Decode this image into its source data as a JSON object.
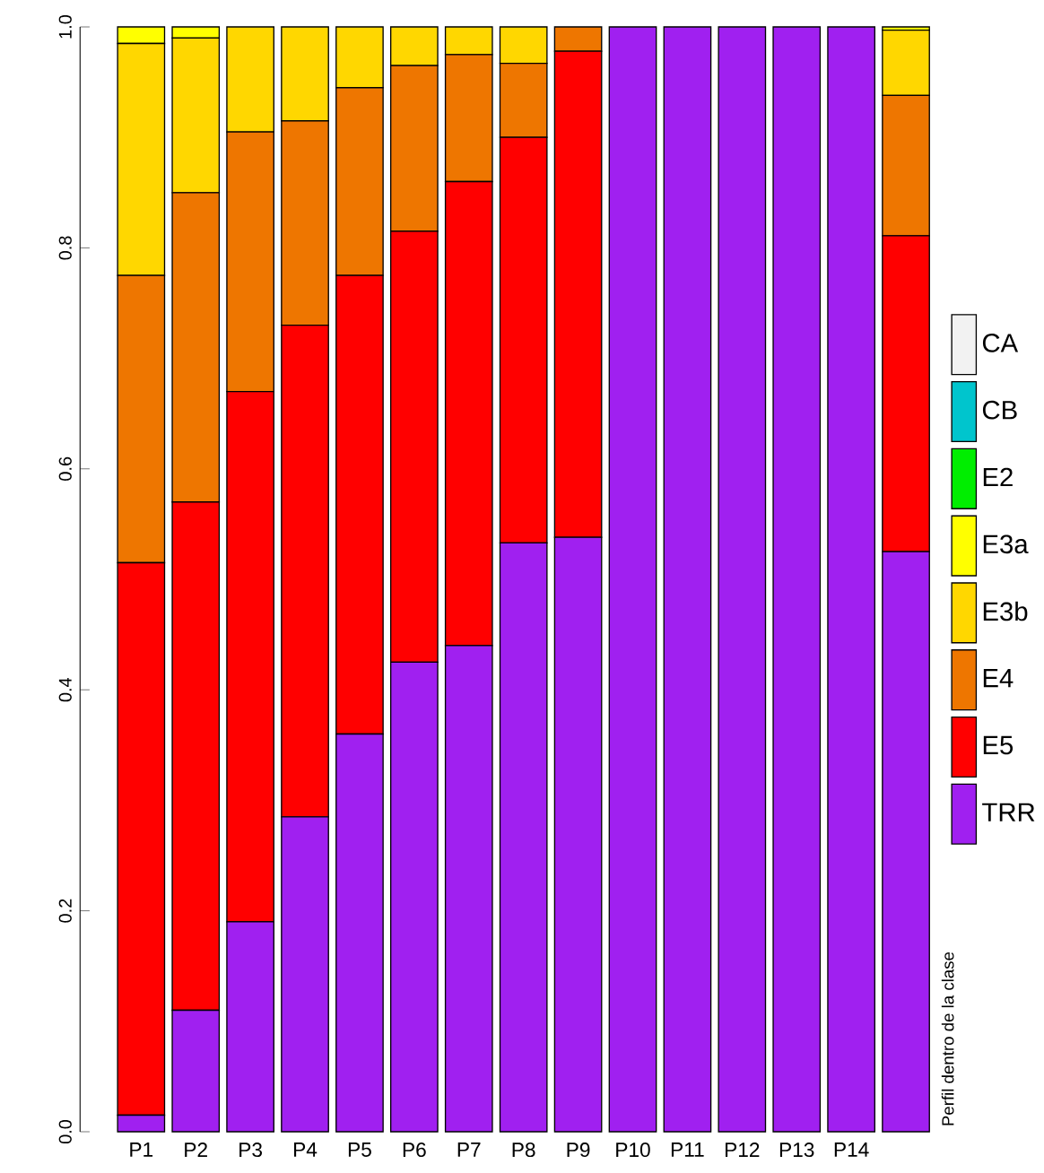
{
  "chart_data": {
    "type": "bar",
    "stacked": true,
    "categories": [
      "P1",
      "P2",
      "P3",
      "P4",
      "P5",
      "P6",
      "P7",
      "P8",
      "P9",
      "P10",
      "P11",
      "P12",
      "P13",
      "P14",
      null
    ],
    "series": [
      {
        "name": "TRR",
        "color": "#a020f0",
        "values": [
          0.015,
          0.11,
          0.19,
          0.285,
          0.36,
          0.425,
          0.44,
          0.533,
          0.538,
          1,
          1,
          1,
          1,
          1,
          0.525
        ]
      },
      {
        "name": "E5",
        "color": "#ff0000",
        "values": [
          0.5,
          0.46,
          0.48,
          0.445,
          0.415,
          0.39,
          0.42,
          0.367,
          0.44,
          0,
          0,
          0,
          0,
          0,
          0.286
        ]
      },
      {
        "name": "E4",
        "color": "#ee7600",
        "values": [
          0.26,
          0.28,
          0.235,
          0.185,
          0.17,
          0.15,
          0.115,
          0.067,
          0.022,
          0,
          0,
          0,
          0,
          0,
          0.127
        ]
      },
      {
        "name": "E3b",
        "color": "#ffd700",
        "values": [
          0.21,
          0.14,
          0.095,
          0.085,
          0.055,
          0.035,
          0.025,
          0.033,
          0,
          0,
          0,
          0,
          0,
          0,
          0.059
        ]
      },
      {
        "name": "E3a",
        "color": "#ffff00",
        "values": [
          0.015,
          0.01,
          0,
          0,
          0,
          0,
          0,
          0,
          0,
          0,
          0,
          0,
          0,
          0,
          0.003
        ]
      },
      {
        "name": "E2",
        "color": "#00ee00",
        "values": [
          0,
          0,
          0,
          0,
          0,
          0,
          0,
          0,
          0,
          0,
          0,
          0,
          0,
          0,
          0
        ]
      },
      {
        "name": "CB",
        "color": "#00c5cd",
        "values": [
          0,
          0,
          0,
          0,
          0,
          0,
          0,
          0,
          0,
          0,
          0,
          0,
          0,
          0,
          0
        ]
      },
      {
        "name": "CA",
        "color": "#f2f2f2",
        "values": [
          0,
          0,
          0,
          0,
          0,
          0,
          0,
          0,
          0,
          0,
          0,
          0,
          0,
          0,
          0
        ]
      }
    ],
    "ylim": [
      0,
      1
    ],
    "yticks": [
      {
        "value": 0,
        "label": "0.0"
      },
      {
        "value": 0.2,
        "label": "0.2"
      },
      {
        "value": 0.4,
        "label": "0.4"
      },
      {
        "value": 0.6,
        "label": "0.6"
      },
      {
        "value": 0.8,
        "label": "0.8"
      },
      {
        "value": 1,
        "label": "1.0"
      }
    ],
    "legend": "right",
    "annotations": [
      "Perfil dentro de la clase"
    ]
  }
}
